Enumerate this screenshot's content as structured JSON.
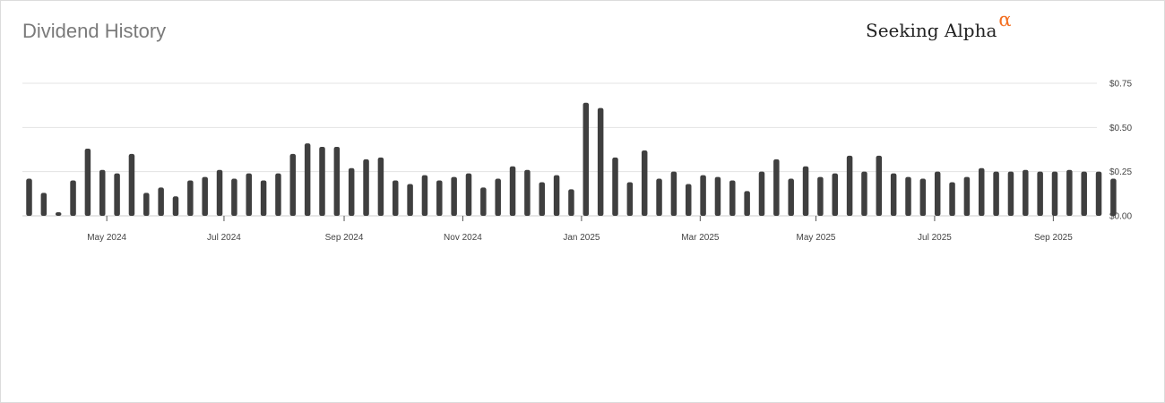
{
  "title": "Dividend History",
  "brand": {
    "name": "Seeking Alpha",
    "symbol": "α",
    "accent_color": "#f36f21"
  },
  "chart_data": {
    "type": "bar",
    "bar_color": "#3f3f3f",
    "grid": true,
    "ylim": [
      0,
      0.75
    ],
    "y_ticks": [
      {
        "value": 0.0,
        "label": "$0.00"
      },
      {
        "value": 0.25,
        "label": "$0.25"
      },
      {
        "value": 0.5,
        "label": "$0.50"
      },
      {
        "value": 0.75,
        "label": "$0.75"
      }
    ],
    "x_ticks": [
      {
        "index": 5.3,
        "label": "May 2024"
      },
      {
        "index": 13.3,
        "label": "Jul 2024"
      },
      {
        "index": 21.5,
        "label": "Sep 2024"
      },
      {
        "index": 29.6,
        "label": "Nov 2024"
      },
      {
        "index": 37.7,
        "label": "Jan 2025"
      },
      {
        "index": 45.8,
        "label": "Mar 2025"
      },
      {
        "index": 53.7,
        "label": "May 2025"
      },
      {
        "index": 61.8,
        "label": "Jul 2025"
      },
      {
        "index": 69.9,
        "label": "Sep 2025"
      }
    ],
    "values": [
      0.21,
      0.13,
      0.02,
      0.2,
      0.38,
      0.26,
      0.24,
      0.35,
      0.13,
      0.16,
      0.11,
      0.2,
      0.22,
      0.26,
      0.21,
      0.24,
      0.2,
      0.24,
      0.35,
      0.41,
      0.39,
      0.39,
      0.27,
      0.32,
      0.33,
      0.2,
      0.18,
      0.23,
      0.2,
      0.22,
      0.24,
      0.16,
      0.21,
      0.28,
      0.26,
      0.19,
      0.23,
      0.15,
      0.64,
      0.61,
      0.33,
      0.19,
      0.37,
      0.21,
      0.25,
      0.18,
      0.23,
      0.22,
      0.2,
      0.14,
      0.25,
      0.32,
      0.21,
      0.28,
      0.22,
      0.24,
      0.34,
      0.25,
      0.34,
      0.24,
      0.22,
      0.21,
      0.25,
      0.19,
      0.22,
      0.27,
      0.25,
      0.25,
      0.26,
      0.25,
      0.25,
      0.26,
      0.25,
      0.25,
      0.21
    ]
  }
}
